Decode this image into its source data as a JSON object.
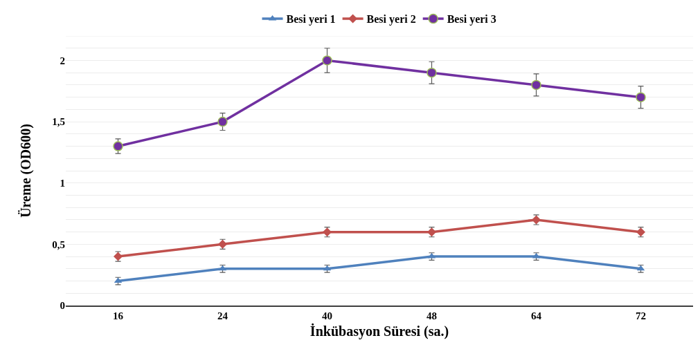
{
  "chart_data": {
    "type": "line",
    "xlabel": "İnkübasyon Süresi (sa.)",
    "ylabel": "Üreme (OD600)",
    "categories": [
      "16",
      "24",
      "40",
      "48",
      "64",
      "72"
    ],
    "series": [
      {
        "name": "Besi yeri 1",
        "color": "#4f81bd",
        "marker": "triangle",
        "values": [
          0.2,
          0.3,
          0.3,
          0.4,
          0.4,
          0.3
        ],
        "errors": [
          0.03,
          0.03,
          0.03,
          0.03,
          0.03,
          0.03
        ]
      },
      {
        "name": "Besi yeri 2",
        "color": "#c0504d",
        "marker": "diamond",
        "values": [
          0.4,
          0.5,
          0.6,
          0.6,
          0.7,
          0.6
        ],
        "errors": [
          0.04,
          0.04,
          0.04,
          0.04,
          0.04,
          0.04
        ]
      },
      {
        "name": "Besi yeri 3",
        "color": "#7030a0",
        "marker": "circle",
        "values": [
          1.3,
          1.5,
          2,
          1.9,
          1.8,
          1.7
        ],
        "errors": [
          0.06,
          0.07,
          0.1,
          0.09,
          0.09,
          0.09
        ]
      }
    ],
    "ylim": [
      0,
      2.2
    ],
    "yticks": [
      0,
      {
        "value": 0.1,
        "label": null
      },
      {
        "value": 0.2,
        "label": null
      },
      {
        "value": 0.3,
        "label": null
      },
      {
        "value": 0.4,
        "label": null
      },
      {
        "value": 0.5,
        "label": "0,5"
      },
      {
        "value": 0.6,
        "label": null
      },
      {
        "value": 0.7,
        "label": null
      },
      {
        "value": 0.8,
        "label": null
      },
      {
        "value": 0.9,
        "label": null
      },
      1,
      {
        "value": 1.1,
        "label": null
      },
      {
        "value": 1.2,
        "label": null
      },
      {
        "value": 1.3,
        "label": null
      },
      {
        "value": 1.4,
        "label": null
      },
      {
        "value": 1.5,
        "label": "1,5"
      },
      {
        "value": 1.6,
        "label": null
      },
      {
        "value": 1.7,
        "label": null
      },
      {
        "value": 1.8,
        "label": null
      },
      {
        "value": 1.9,
        "label": null
      },
      2,
      {
        "value": 2.1,
        "label": null
      },
      {
        "value": 2.2,
        "label": null
      }
    ],
    "grid": "y",
    "legend": "top"
  }
}
